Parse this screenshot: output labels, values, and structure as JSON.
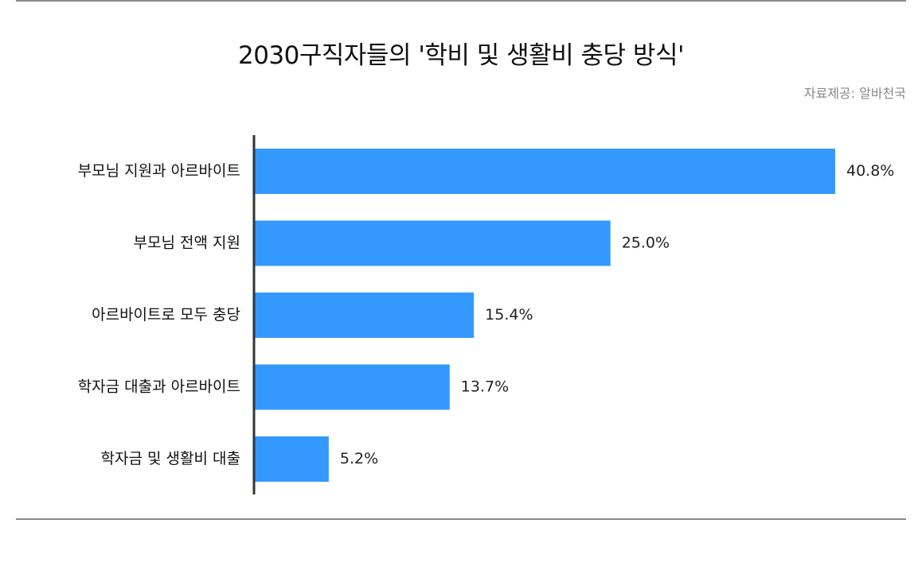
{
  "title": "2030구직자들의 '학비 및 생활비 충당 방식'",
  "source": "자료제공: 알바천국",
  "colors": {
    "bar": "#3399ff",
    "axis": "#333333",
    "rule": "#8a8a8a"
  },
  "chart_data": {
    "type": "bar",
    "orientation": "horizontal",
    "categories": [
      "부모님 지원과 아르바이트",
      "부모님 전액 지원",
      "아르바이트로 모두 충당",
      "학자금 대출과 아르바이트",
      "학자금 및 생활비 대출"
    ],
    "values": [
      40.8,
      25.0,
      15.4,
      13.7,
      5.2
    ],
    "value_labels": [
      "40.8%",
      "25.0%",
      "15.4%",
      "13.7%",
      "5.2%"
    ],
    "unit": "%",
    "xlim": [
      0,
      40.8
    ],
    "grid": false,
    "legend": "none"
  }
}
